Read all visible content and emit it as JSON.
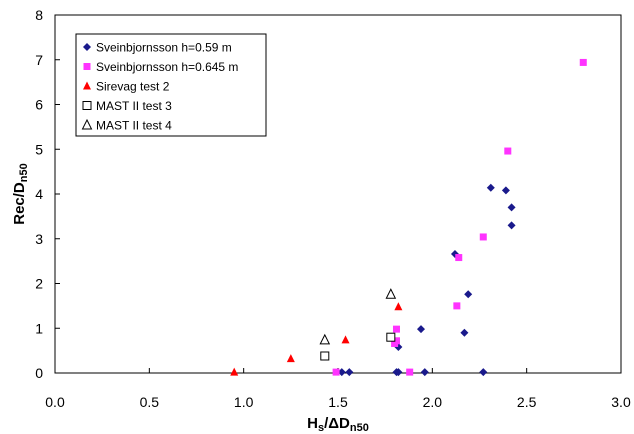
{
  "chart_data": {
    "type": "scatter",
    "xlabel": {
      "main": "H",
      "sub1": "s",
      "mid": "/ΔD",
      "sub2": "n50"
    },
    "ylabel": {
      "main": "Rec/D",
      "sub": "n50"
    },
    "xlim": [
      0,
      3
    ],
    "ylim": [
      0,
      8
    ],
    "xticks": [
      0.0,
      0.5,
      1.0,
      1.5,
      2.0,
      2.5,
      3.0
    ],
    "xtick_labels": [
      "0.0",
      "0.5",
      "1.0",
      "1.5",
      "2.0",
      "2.5",
      "3.0"
    ],
    "yticks": [
      0,
      1,
      2,
      3,
      4,
      5,
      6,
      7,
      8
    ],
    "ytick_labels": [
      "0",
      "1",
      "2",
      "3",
      "4",
      "5",
      "6",
      "7",
      "8"
    ],
    "grid": false,
    "legend_position": "top-left",
    "series": [
      {
        "name": "Sveinbjornsson h=0.59 m",
        "marker": "diamond",
        "color": "#1a1a8c",
        "points": [
          [
            1.52,
            0.02
          ],
          [
            1.56,
            0.02
          ],
          [
            1.81,
            0.02
          ],
          [
            1.82,
            0.02
          ],
          [
            1.96,
            0.02
          ],
          [
            2.27,
            0.02
          ],
          [
            1.82,
            0.58
          ],
          [
            1.94,
            0.98
          ],
          [
            2.17,
            0.9
          ],
          [
            2.19,
            1.76
          ],
          [
            2.12,
            2.66
          ],
          [
            2.31,
            4.14
          ],
          [
            2.39,
            4.08
          ],
          [
            2.42,
            3.7
          ],
          [
            2.42,
            3.3
          ]
        ]
      },
      {
        "name": "Sveinbjornsson h=0.645 m",
        "marker": "square",
        "color": "#ff33ff",
        "points": [
          [
            1.49,
            0.02
          ],
          [
            1.88,
            0.02
          ],
          [
            1.8,
            0.66
          ],
          [
            1.81,
            0.72
          ],
          [
            1.81,
            0.98
          ],
          [
            2.13,
            1.5
          ],
          [
            2.14,
            2.58
          ],
          [
            2.27,
            3.04
          ],
          [
            2.4,
            4.96
          ],
          [
            2.8,
            6.94
          ]
        ]
      },
      {
        "name": "Sirevag test 2",
        "marker": "triangle",
        "color": "#ff0000",
        "points": [
          [
            0.95,
            0.02
          ],
          [
            1.25,
            0.32
          ],
          [
            1.54,
            0.74
          ],
          [
            1.82,
            1.48
          ]
        ]
      },
      {
        "name": "MAST II test 3",
        "marker": "square-open",
        "color": "#000000",
        "points": [
          [
            1.43,
            0.38
          ],
          [
            1.78,
            0.8
          ]
        ]
      },
      {
        "name": "MAST II test 4",
        "marker": "triangle-open",
        "color": "#000000",
        "points": [
          [
            1.43,
            0.74
          ],
          [
            1.78,
            1.76
          ]
        ]
      }
    ]
  }
}
